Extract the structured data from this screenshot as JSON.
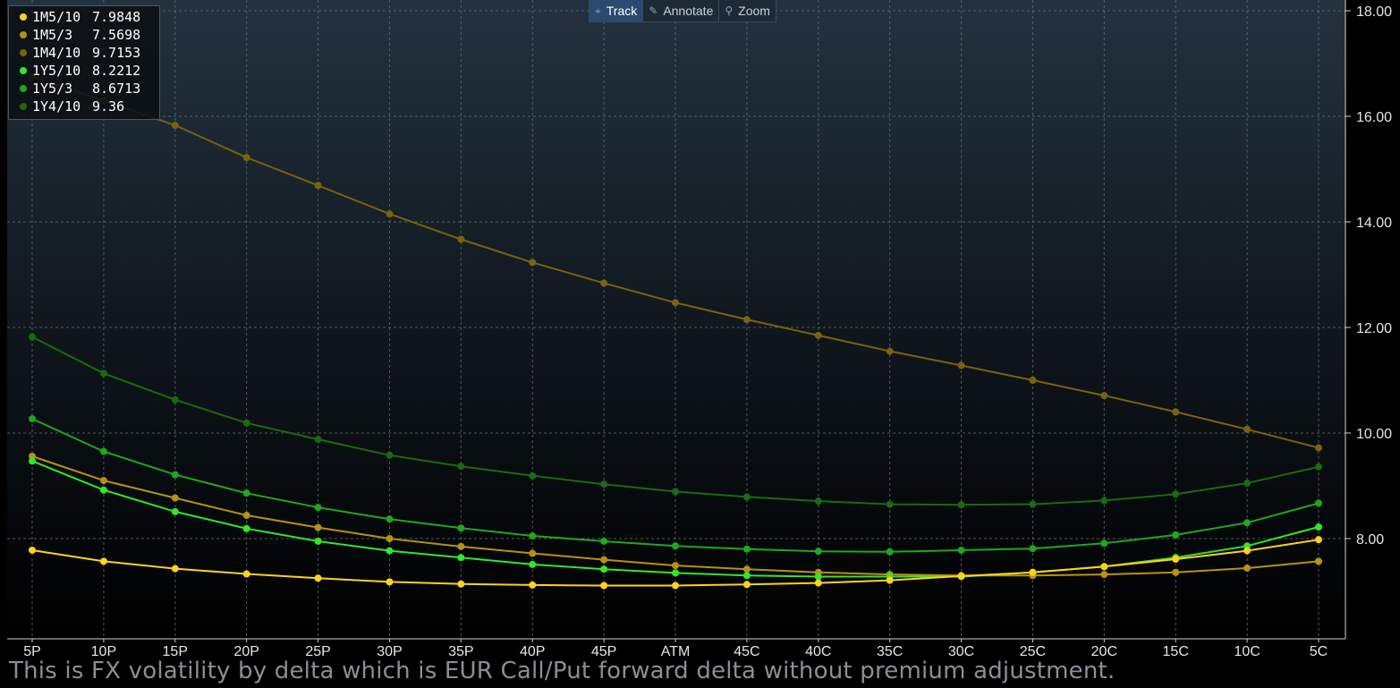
{
  "toolbar": {
    "track_label": "Track",
    "annotate_label": "Annotate",
    "zoom_label": "Zoom"
  },
  "footnote": "This is FX volatility by delta which is EUR Call/Put forward delta without premium adjustment.",
  "chart_data": {
    "type": "line",
    "categories": [
      "5P",
      "10P",
      "15P",
      "20P",
      "25P",
      "30P",
      "35P",
      "40P",
      "45P",
      "ATM",
      "45C",
      "40C",
      "35C",
      "30C",
      "25C",
      "20C",
      "15C",
      "10C",
      "5C"
    ],
    "y_ticks": [
      "8.00",
      "10.00",
      "12.00",
      "14.00",
      "16.00",
      "18.00"
    ],
    "ylim": [
      6.55,
      18.2
    ],
    "y_axis_side": "right",
    "grid": true,
    "legend_placement": "top-left",
    "series": [
      {
        "name": "1M5/10",
        "last_label": "7.9848",
        "color": "#ffd21a",
        "values": [
          7.78,
          7.57,
          7.43,
          7.33,
          7.25,
          7.18,
          7.14,
          7.12,
          7.11,
          7.11,
          7.13,
          7.16,
          7.21,
          7.29,
          7.36,
          7.47,
          7.61,
          7.77,
          7.98
        ]
      },
      {
        "name": "1M5/3",
        "last_label": "7.5698",
        "color": "#b8920f",
        "values": [
          9.56,
          9.1,
          8.77,
          8.44,
          8.21,
          8.0,
          7.85,
          7.72,
          7.6,
          7.49,
          7.42,
          7.36,
          7.32,
          7.3,
          7.3,
          7.32,
          7.36,
          7.44,
          7.57
        ]
      },
      {
        "name": "1M4/10",
        "last_label": "9.7153",
        "color": "#7a6210",
        "values": [
          16.75,
          16.3,
          15.83,
          15.22,
          14.69,
          14.15,
          13.67,
          13.23,
          12.84,
          12.47,
          12.15,
          11.85,
          11.55,
          11.28,
          11.0,
          10.71,
          10.4,
          10.07,
          9.72
        ]
      },
      {
        "name": "1Y5/10",
        "last_label": "8.2212",
        "color": "#2ee82e",
        "values": [
          9.47,
          8.92,
          8.51,
          8.19,
          7.95,
          7.77,
          7.64,
          7.51,
          7.42,
          7.35,
          7.3,
          7.28,
          7.28,
          7.28,
          7.36,
          7.47,
          7.64,
          7.86,
          8.22
        ]
      },
      {
        "name": "1Y5/3",
        "last_label": "8.6713",
        "color": "#1fa81f",
        "values": [
          10.27,
          9.65,
          9.21,
          8.86,
          8.59,
          8.37,
          8.2,
          8.05,
          7.95,
          7.86,
          7.8,
          7.76,
          7.75,
          7.78,
          7.81,
          7.91,
          8.07,
          8.3,
          8.67
        ]
      },
      {
        "name": "1Y4/10",
        "last_label": "9.36",
        "color": "#1b6a12",
        "values": [
          11.82,
          11.13,
          10.63,
          10.19,
          9.88,
          9.58,
          9.37,
          9.19,
          9.03,
          8.89,
          8.79,
          8.71,
          8.65,
          8.64,
          8.65,
          8.72,
          8.84,
          9.05,
          9.36
        ]
      }
    ]
  }
}
